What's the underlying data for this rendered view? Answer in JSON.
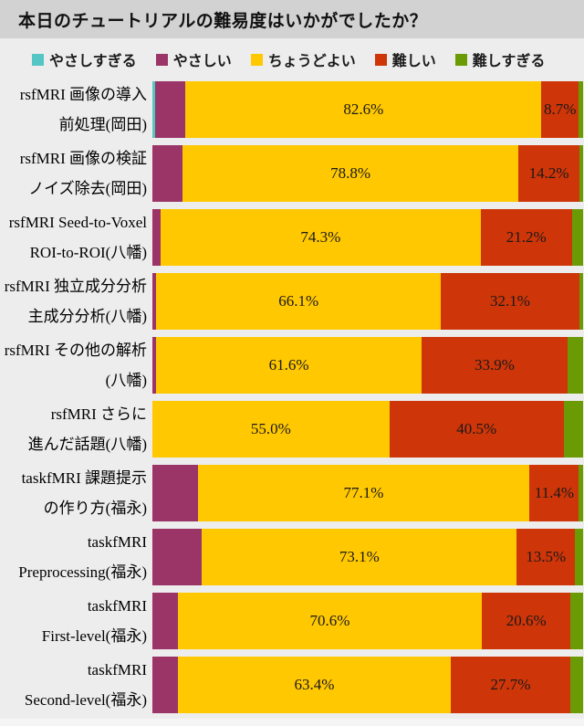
{
  "title": "本日のチュートリアルの難易度はいかがでしたか？",
  "colors": {
    "too_easy": "#55C6C3",
    "easy": "#9B3567",
    "just_right": "#FFC801",
    "difficult": "#CE3508",
    "too_difficult": "#6A9B04",
    "title_bar_bg": "#D2D2D2",
    "page_bg": "#EDEDED",
    "footer_bg": "#F5F5F5",
    "label_text": "#1A1A1A"
  },
  "legend": {
    "items": [
      {
        "id": "too_easy",
        "label": "やさしすぎる"
      },
      {
        "id": "easy",
        "label": "やさしい"
      },
      {
        "id": "just_right",
        "label": "ちょうどよい"
      },
      {
        "id": "difficult",
        "label": "難しい"
      },
      {
        "id": "too_difficult",
        "label": "難しすぎる"
      }
    ]
  },
  "chart_data": {
    "type": "bar",
    "orientation": "horizontal",
    "stacked": true,
    "unit": "percent",
    "xlim": [
      0,
      100
    ],
    "grid": false,
    "legend_position": "top",
    "title": "本日のチュートリアルの難易度はいかがでしたか？",
    "series_names": [
      "やさしすぎる",
      "やさしい",
      "ちょうどよい",
      "難しい",
      "難しすぎる"
    ],
    "rows": [
      {
        "category_lines": [
          "rsfMRI 画像の導入",
          "前処理(岡田)"
        ],
        "values": {
          "too_easy": 0.7,
          "easy": 7.0,
          "just_right": 82.6,
          "difficult": 8.7,
          "too_difficult": 1.0
        },
        "labels": {
          "just_right": "82.6%",
          "difficult": "8.7%"
        }
      },
      {
        "category_lines": [
          "rsfMRI 画像の検証",
          "ノイズ除去(岡田)"
        ],
        "values": {
          "too_easy": 0,
          "easy": 7.0,
          "just_right": 78.8,
          "difficult": 14.2,
          "too_difficult": 0.9
        },
        "labels": {
          "just_right": "78.8%",
          "difficult": "14.2%"
        }
      },
      {
        "category_lines": [
          "rsfMRI Seed-to-Voxel",
          "ROI-to-ROI(八幡)"
        ],
        "values": {
          "too_easy": 0,
          "easy": 1.9,
          "just_right": 74.3,
          "difficult": 21.2,
          "too_difficult": 2.6
        },
        "labels": {
          "just_right": "74.3%",
          "difficult": "21.2%"
        }
      },
      {
        "category_lines": [
          "rsfMRI 独立成分分析",
          "主成分分析(八幡)"
        ],
        "values": {
          "too_easy": 0,
          "easy": 0.9,
          "just_right": 66.1,
          "difficult": 32.1,
          "too_difficult": 0.9
        },
        "labels": {
          "just_right": "66.1%",
          "difficult": "32.1%"
        }
      },
      {
        "category_lines": [
          "rsfMRI その他の解析",
          "(八幡)"
        ],
        "values": {
          "too_easy": 0,
          "easy": 0.9,
          "just_right": 61.6,
          "difficult": 33.9,
          "too_difficult": 3.6
        },
        "labels": {
          "just_right": "61.6%",
          "difficult": "33.9%"
        }
      },
      {
        "category_lines": [
          "rsfMRI さらに",
          "進んだ話題(八幡)"
        ],
        "values": {
          "too_easy": 0,
          "easy": 0,
          "just_right": 55.0,
          "difficult": 40.5,
          "too_difficult": 4.5
        },
        "labels": {
          "just_right": "55.0%",
          "difficult": "40.5%"
        }
      },
      {
        "category_lines": [
          "taskfMRI 課題提示",
          "の作り方(福永)"
        ],
        "values": {
          "too_easy": 0,
          "easy": 10.5,
          "just_right": 77.1,
          "difficult": 11.4,
          "too_difficult": 1.0
        },
        "labels": {
          "just_right": "77.1%",
          "difficult": "11.4%"
        }
      },
      {
        "category_lines": [
          "taskfMRI",
          "Preprocessing(福永)"
        ],
        "values": {
          "too_easy": 0,
          "easy": 11.5,
          "just_right": 73.1,
          "difficult": 13.5,
          "too_difficult": 1.9
        },
        "labels": {
          "just_right": "73.1%",
          "difficult": "13.5%"
        }
      },
      {
        "category_lines": [
          "taskfMRI",
          "First-level(福永)"
        ],
        "values": {
          "too_easy": 0,
          "easy": 5.9,
          "just_right": 70.6,
          "difficult": 20.6,
          "too_difficult": 2.9
        },
        "labels": {
          "just_right": "70.6%",
          "difficult": "20.6%"
        }
      },
      {
        "category_lines": [
          "taskfMRI",
          "Second-level(福永)"
        ],
        "values": {
          "too_easy": 0,
          "easy": 5.9,
          "just_right": 63.4,
          "difficult": 27.7,
          "too_difficult": 3.0
        },
        "labels": {
          "just_right": "63.4%",
          "difficult": "27.7%"
        }
      }
    ]
  }
}
